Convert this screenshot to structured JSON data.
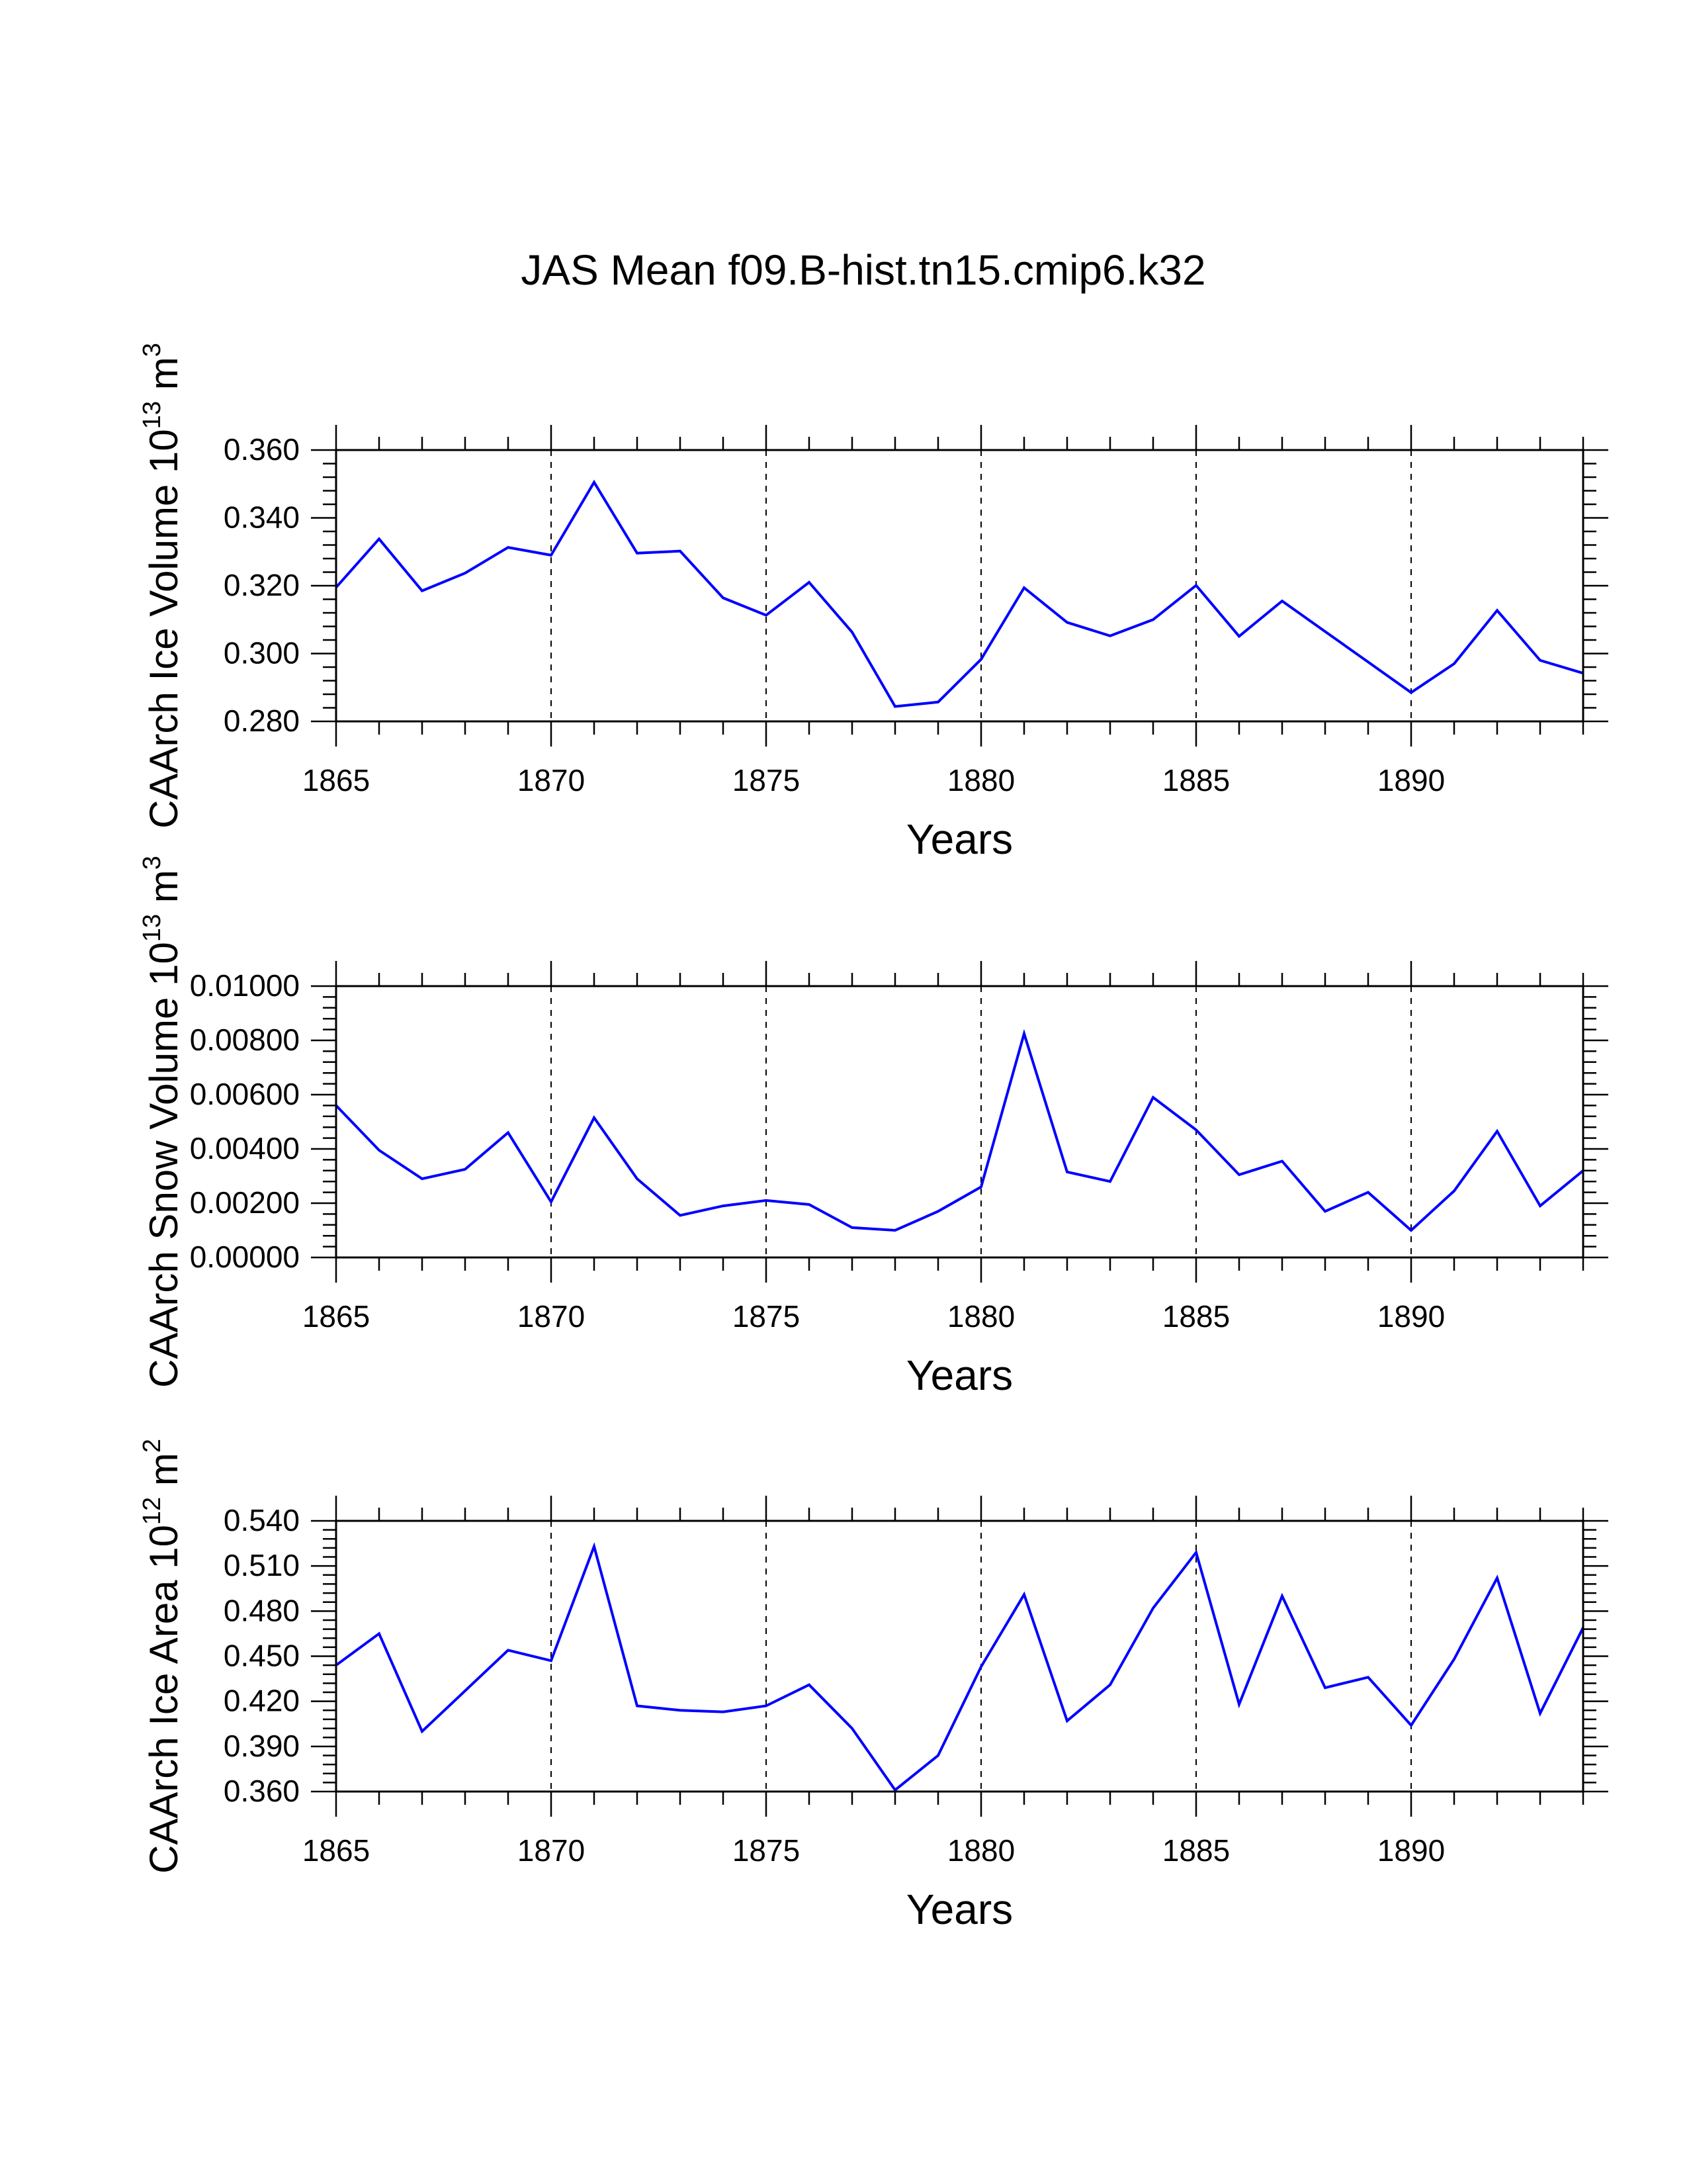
{
  "figure_title": "JAS Mean f09.B-hist.tn15.cmip6.k32",
  "colors": {
    "series": "#0000ff",
    "axes": "#000000",
    "background": "#ffffff"
  },
  "chart_data": [
    {
      "type": "line",
      "title": "",
      "ylabel_main": "CAArch Ice Volume 10",
      "ylabel_exp": "13",
      "ylabel_unit": "m",
      "ylabel_unit_exp": "3",
      "xlabel": "Years",
      "xlim": [
        1865,
        1894
      ],
      "ylim": [
        0.28,
        0.36
      ],
      "yticks": [
        0.28,
        0.3,
        0.32,
        0.34,
        0.36
      ],
      "ytick_labels": [
        "0.280",
        "0.300",
        "0.320",
        "0.340",
        "0.360"
      ],
      "xticks": [
        1865,
        1870,
        1875,
        1880,
        1885,
        1890
      ],
      "xtick_labels": [
        "1865",
        "1870",
        "1875",
        "1880",
        "1885",
        "1890"
      ],
      "x": [
        1865,
        1866,
        1867,
        1868,
        1869,
        1870,
        1871,
        1872,
        1873,
        1874,
        1875,
        1876,
        1877,
        1878,
        1879,
        1880,
        1881,
        1882,
        1883,
        1884,
        1885,
        1886,
        1887,
        1888,
        1889,
        1890,
        1891,
        1892,
        1893,
        1894
      ],
      "series": [
        {
          "name": "CAArch Ice Volume",
          "values": [
            0.3195,
            0.3338,
            0.3185,
            0.3237,
            0.3313,
            0.329,
            0.3505,
            0.3296,
            0.3302,
            0.3164,
            0.3113,
            0.321,
            0.3063,
            0.2844,
            0.2857,
            0.2983,
            0.3194,
            0.3092,
            0.3052,
            0.31,
            0.3201,
            0.3051,
            0.3155,
            0.3065,
            0.2975,
            0.2885,
            0.297,
            0.3127,
            0.298,
            0.2942
          ]
        }
      ]
    },
    {
      "type": "line",
      "title": "",
      "ylabel_main": "CAArch Snow Volume 10",
      "ylabel_exp": "13",
      "ylabel_unit": "m",
      "ylabel_unit_exp": "3",
      "xlabel": "Years",
      "xlim": [
        1865,
        1894
      ],
      "ylim": [
        0.0,
        0.01
      ],
      "yticks": [
        0.0,
        0.002,
        0.004,
        0.006,
        0.008,
        0.01
      ],
      "ytick_labels": [
        "0.00000",
        "0.00200",
        "0.00400",
        "0.00600",
        "0.00800",
        "0.01000"
      ],
      "xticks": [
        1865,
        1870,
        1875,
        1880,
        1885,
        1890
      ],
      "xtick_labels": [
        "1865",
        "1870",
        "1875",
        "1880",
        "1885",
        "1890"
      ],
      "x": [
        1865,
        1866,
        1867,
        1868,
        1869,
        1870,
        1871,
        1872,
        1873,
        1874,
        1875,
        1876,
        1877,
        1878,
        1879,
        1880,
        1881,
        1882,
        1883,
        1884,
        1885,
        1886,
        1887,
        1888,
        1889,
        1890,
        1891,
        1892,
        1893,
        1894
      ],
      "series": [
        {
          "name": "CAArch Snow Volume",
          "values": [
            0.0056,
            0.00395,
            0.0029,
            0.00325,
            0.0046,
            0.00205,
            0.00515,
            0.0029,
            0.00155,
            0.0019,
            0.0021,
            0.00195,
            0.0011,
            0.001,
            0.0017,
            0.0026,
            0.00825,
            0.00315,
            0.0028,
            0.0059,
            0.0047,
            0.00305,
            0.00355,
            0.0017,
            0.0024,
            0.001,
            0.00245,
            0.00465,
            0.0019,
            0.0032
          ]
        }
      ]
    },
    {
      "type": "line",
      "title": "",
      "ylabel_main": "CAArch Ice Area 10",
      "ylabel_exp": "12",
      "ylabel_unit": "m",
      "ylabel_unit_exp": "2",
      "xlabel": "Years",
      "xlim": [
        1865,
        1894
      ],
      "ylim": [
        0.36,
        0.54
      ],
      "yticks": [
        0.36,
        0.39,
        0.42,
        0.45,
        0.48,
        0.51,
        0.54
      ],
      "ytick_labels": [
        "0.360",
        "0.390",
        "0.420",
        "0.450",
        "0.480",
        "0.510",
        "0.540"
      ],
      "xticks": [
        1865,
        1870,
        1875,
        1880,
        1885,
        1890
      ],
      "xtick_labels": [
        "1865",
        "1870",
        "1875",
        "1880",
        "1885",
        "1890"
      ],
      "x": [
        1865,
        1866,
        1867,
        1868,
        1869,
        1870,
        1871,
        1872,
        1873,
        1874,
        1875,
        1876,
        1877,
        1878,
        1879,
        1880,
        1881,
        1882,
        1883,
        1884,
        1885,
        1886,
        1887,
        1888,
        1889,
        1890,
        1891,
        1892,
        1893,
        1894
      ],
      "series": [
        {
          "name": "CAArch Ice Area",
          "values": [
            0.444,
            0.465,
            0.4,
            0.427,
            0.454,
            0.447,
            0.523,
            0.417,
            0.414,
            0.413,
            0.417,
            0.431,
            0.402,
            0.361,
            0.384,
            0.443,
            0.491,
            0.407,
            0.431,
            0.482,
            0.519,
            0.418,
            0.49,
            0.429,
            0.436,
            0.404,
            0.448,
            0.502,
            0.412,
            0.469
          ]
        }
      ]
    }
  ]
}
